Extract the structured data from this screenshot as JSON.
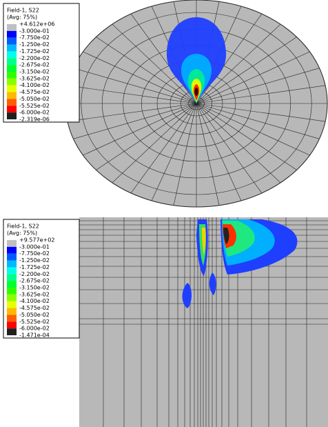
{
  "top_plot": {
    "legend": {
      "title": "Field-1, S22",
      "subtitle": "(Avg: 75%)",
      "labels": [
        "+4.612e+06",
        "-3.000e-01",
        "-7.750e-02",
        "-1.250e-02",
        "-1.725e-02",
        "-2.200e-02",
        "-2.675e-02",
        "-3.150e-02",
        "-3.625e-02",
        "-4.100e-02",
        "-4.575e-02",
        "-5.050e-02",
        "-5.525e-02",
        "-6.000e-02",
        "-2.319e-06"
      ]
    }
  },
  "bottom_plot": {
    "legend": {
      "title": "Field-1, S22",
      "subtitle": "(Avg: 75%)",
      "labels": [
        "+9.577e+02",
        "-3.000e-01",
        "-7.750e-02",
        "-1.250e-02",
        "-1.725e-02",
        "-2.200e-02",
        "-2.675e-02",
        "-3.150e-02",
        "-3.625e-02",
        "-4.100e-02",
        "-4.575e-02",
        "-5.050e-02",
        "-5.525e-02",
        "-6.000e-02",
        "-1.471e-04"
      ]
    }
  }
}
